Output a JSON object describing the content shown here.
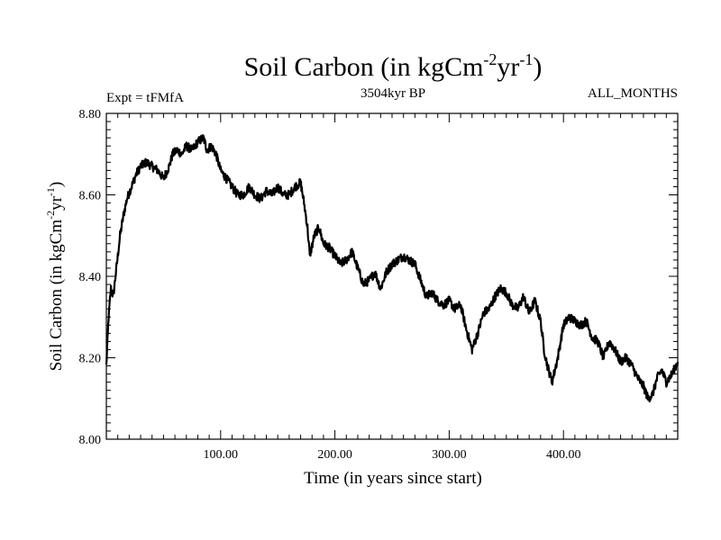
{
  "chart_data": {
    "type": "line",
    "title": {
      "main": "Soil Carbon (in kgCm",
      "sup1": "-2",
      "mid": "yr",
      "sup2": "-1",
      "end": ")"
    },
    "subtitle_left": "Expt = tFMfA",
    "subtitle_center": "3504kyr BP",
    "subtitle_right": "ALL_MONTHS",
    "xlabel": "Time (in years since start)",
    "ylabel": {
      "main": "Soil Carbon (in kgCm",
      "sup1": "-2",
      "mid": "yr",
      "sup2": "-1",
      "end": ")"
    },
    "xlim": [
      0,
      500
    ],
    "ylim": [
      8.0,
      8.8
    ],
    "x_ticks": [
      100,
      200,
      300,
      400
    ],
    "x_tick_labels": [
      "100.00",
      "200.00",
      "300.00",
      "400.00"
    ],
    "y_ticks": [
      8.0,
      8.2,
      8.4,
      8.6,
      8.8
    ],
    "y_tick_labels": [
      "8.00",
      "8.20",
      "8.40",
      "8.60",
      "8.80"
    ],
    "series": [
      {
        "name": "Soil Carbon",
        "color": "#000000",
        "x": [
          0,
          2,
          4,
          6,
          8,
          10,
          12,
          15,
          18,
          22,
          26,
          30,
          35,
          40,
          45,
          50,
          55,
          58,
          62,
          66,
          70,
          75,
          80,
          85,
          88,
          92,
          96,
          100,
          105,
          110,
          115,
          120,
          125,
          130,
          135,
          140,
          145,
          150,
          155,
          160,
          165,
          170,
          173,
          176,
          178,
          182,
          186,
          190,
          195,
          200,
          205,
          210,
          215,
          220,
          225,
          230,
          235,
          240,
          245,
          250,
          255,
          260,
          265,
          270,
          275,
          280,
          285,
          290,
          295,
          300,
          305,
          310,
          315,
          320,
          325,
          330,
          335,
          340,
          345,
          350,
          355,
          360,
          365,
          370,
          375,
          380,
          383,
          386,
          390,
          395,
          400,
          405,
          410,
          415,
          420,
          425,
          430,
          435,
          440,
          445,
          450,
          455,
          460,
          465,
          470,
          474,
          478,
          482,
          486,
          490,
          495,
          500
        ],
        "values": [
          8.18,
          8.3,
          8.37,
          8.35,
          8.4,
          8.45,
          8.5,
          8.55,
          8.59,
          8.62,
          8.65,
          8.67,
          8.68,
          8.67,
          8.66,
          8.64,
          8.67,
          8.7,
          8.71,
          8.7,
          8.72,
          8.71,
          8.73,
          8.74,
          8.71,
          8.72,
          8.7,
          8.66,
          8.64,
          8.62,
          8.6,
          8.6,
          8.62,
          8.6,
          8.59,
          8.61,
          8.6,
          8.62,
          8.6,
          8.6,
          8.62,
          8.63,
          8.58,
          8.52,
          8.45,
          8.5,
          8.52,
          8.48,
          8.47,
          8.45,
          8.43,
          8.44,
          8.46,
          8.42,
          8.38,
          8.39,
          8.41,
          8.37,
          8.41,
          8.43,
          8.44,
          8.45,
          8.44,
          8.43,
          8.39,
          8.35,
          8.36,
          8.34,
          8.33,
          8.34,
          8.32,
          8.33,
          8.27,
          8.22,
          8.26,
          8.31,
          8.32,
          8.35,
          8.37,
          8.36,
          8.33,
          8.32,
          8.35,
          8.31,
          8.34,
          8.29,
          8.22,
          8.18,
          8.14,
          8.2,
          8.28,
          8.3,
          8.29,
          8.28,
          8.29,
          8.25,
          8.24,
          8.2,
          8.24,
          8.22,
          8.19,
          8.2,
          8.18,
          8.15,
          8.13,
          8.1,
          8.11,
          8.15,
          8.17,
          8.14,
          8.16,
          8.19
        ]
      }
    ]
  }
}
